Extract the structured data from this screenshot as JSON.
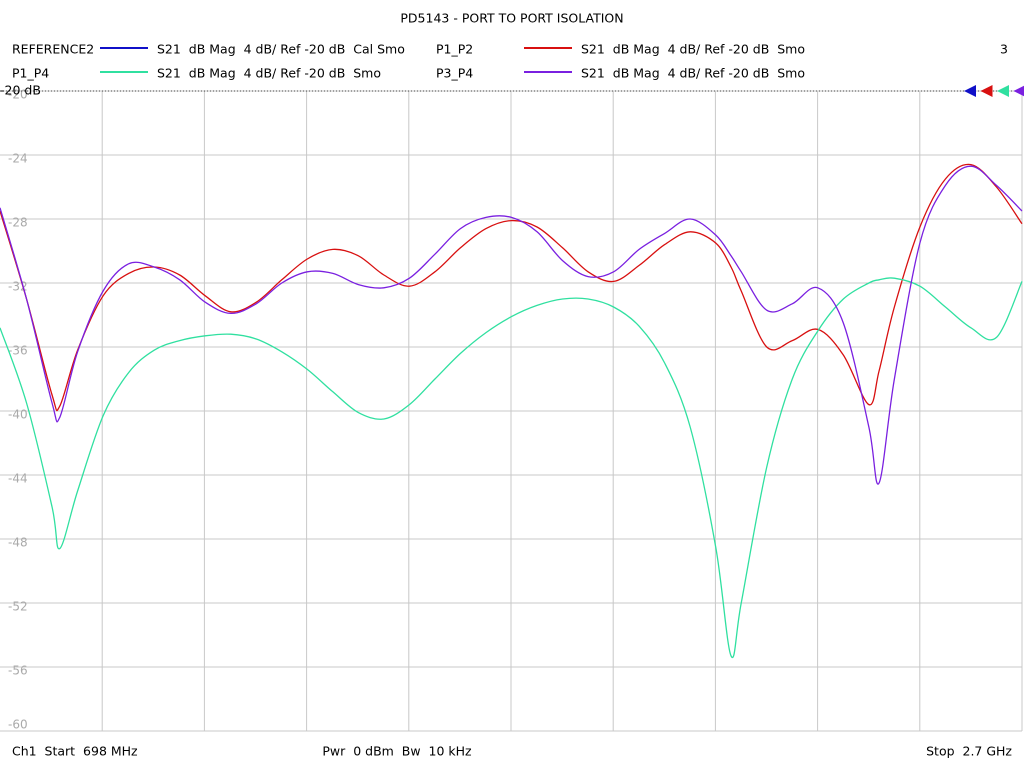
{
  "chart_data": {
    "type": "line",
    "title": "PD5143 - PORT TO PORT ISOLATION",
    "channel_number": "3",
    "reference_label": "-20 dB",
    "footer": {
      "left": "Ch1  Start  698 MHz",
      "center": "Pwr  0 dBm  Bw  10 kHz",
      "right": "Stop  2.7 GHz"
    },
    "xlim": [
      698,
      2700
    ],
    "xdivisions": 10,
    "ylim": [
      -60,
      -20
    ],
    "yticks": [
      -20,
      -24,
      -28,
      -32,
      -36,
      -40,
      -44,
      -48,
      -52,
      -56,
      -60
    ],
    "grid": true,
    "x": [
      698,
      750,
      800,
      815,
      850,
      900,
      950,
      1000,
      1050,
      1100,
      1150,
      1200,
      1250,
      1300,
      1350,
      1400,
      1450,
      1500,
      1550,
      1600,
      1650,
      1700,
      1750,
      1800,
      1850,
      1900,
      1950,
      2000,
      2050,
      2100,
      2130,
      2150,
      2200,
      2250,
      2300,
      2350,
      2400,
      2420,
      2450,
      2500,
      2550,
      2600,
      2650,
      2700
    ],
    "series": [
      {
        "name": "REFERENCE2",
        "description": "S21  dB Mag  4 dB/ Ref -20 dB  Cal Smo",
        "color": "#1010c8",
        "values": [
          null,
          null,
          null,
          null,
          null,
          null,
          null,
          null,
          null,
          null,
          null,
          null,
          null,
          null,
          null,
          null,
          null,
          null,
          null,
          null,
          null,
          null,
          null,
          null,
          null,
          null,
          null,
          null,
          null,
          null,
          null,
          null,
          null,
          null,
          null,
          null,
          null,
          null,
          null,
          null,
          null,
          null,
          null,
          null
        ]
      },
      {
        "name": "P1_P2",
        "description": "S21  dB Mag  4 dB/ Ref -20 dB  Smo",
        "color": "#d81010",
        "values": [
          -27.5,
          -33.0,
          -39.0,
          -39.7,
          -36.2,
          -32.8,
          -31.4,
          -31.0,
          -31.5,
          -32.8,
          -33.8,
          -33.2,
          -31.8,
          -30.5,
          -29.9,
          -30.3,
          -31.5,
          -32.2,
          -31.3,
          -29.8,
          -28.6,
          -28.1,
          -28.5,
          -29.8,
          -31.3,
          -31.9,
          -30.9,
          -29.6,
          -28.8,
          -29.5,
          -31.0,
          -32.5,
          -36.0,
          -35.6,
          -34.9,
          -36.5,
          -39.6,
          -37.5,
          -33.5,
          -28.5,
          -25.5,
          -24.6,
          -26.0,
          -28.3
        ]
      },
      {
        "name": "P1_P4",
        "description": "S21  dB Mag  4 dB/ Ref -20 dB  Smo",
        "color": "#30e0a0",
        "values": [
          -34.8,
          -39.5,
          -46.0,
          -48.6,
          -45.0,
          -40.3,
          -37.6,
          -36.2,
          -35.6,
          -35.3,
          -35.2,
          -35.5,
          -36.3,
          -37.4,
          -38.8,
          -40.1,
          -40.5,
          -39.6,
          -38.0,
          -36.4,
          -35.1,
          -34.1,
          -33.4,
          -33.0,
          -33.0,
          -33.5,
          -34.7,
          -37.0,
          -41.0,
          -48.5,
          -55.3,
          -52.0,
          -43.5,
          -38.0,
          -35.0,
          -33.0,
          -32.0,
          -31.8,
          -31.7,
          -32.2,
          -33.5,
          -34.8,
          -35.4,
          -31.9
        ]
      },
      {
        "name": "P3_P4",
        "description": "S21  dB Mag  4 dB/ Ref -20 dB  Smo",
        "color": "#7a20e0",
        "values": [
          -27.3,
          -33.0,
          -39.5,
          -40.4,
          -36.3,
          -32.5,
          -30.8,
          -31.0,
          -31.8,
          -33.2,
          -33.9,
          -33.3,
          -32.0,
          -31.3,
          -31.4,
          -32.1,
          -32.3,
          -31.7,
          -30.2,
          -28.6,
          -27.9,
          -27.9,
          -28.8,
          -30.6,
          -31.6,
          -31.3,
          -29.9,
          -28.9,
          -28.0,
          -29.0,
          -30.3,
          -31.3,
          -33.7,
          -33.3,
          -32.3,
          -34.5,
          -41.0,
          -44.5,
          -38.0,
          -29.5,
          -25.9,
          -24.7,
          -25.9,
          -27.5
        ]
      }
    ]
  }
}
